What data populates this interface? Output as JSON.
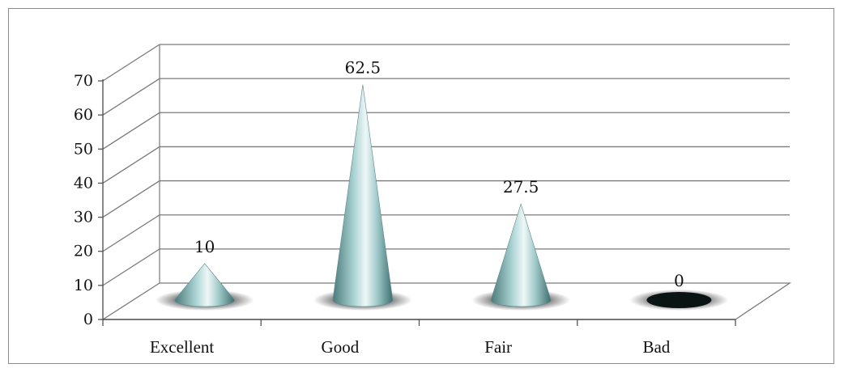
{
  "chart_data": {
    "type": "bar",
    "style": "3d-cone",
    "categories": [
      "Excellent",
      "Good",
      "Fair",
      "Bad"
    ],
    "values": [
      10,
      62.5,
      27.5,
      0
    ],
    "data_labels": [
      "10",
      "62.5",
      "27.5",
      "0"
    ],
    "title": "",
    "xlabel": "",
    "ylabel": "",
    "ylim": [
      0,
      70
    ],
    "yticks": [
      "0",
      "10",
      "20",
      "30",
      "40",
      "50",
      "60",
      "70"
    ],
    "grid": true,
    "legend": "none"
  },
  "colors": {
    "cone_light": "#eef7f7",
    "cone_mid": "#9cc6c6",
    "cone_dark": "#3f6e6e",
    "zero_ellipse": "#0a1413",
    "gridline": "#7a7a7a"
  }
}
